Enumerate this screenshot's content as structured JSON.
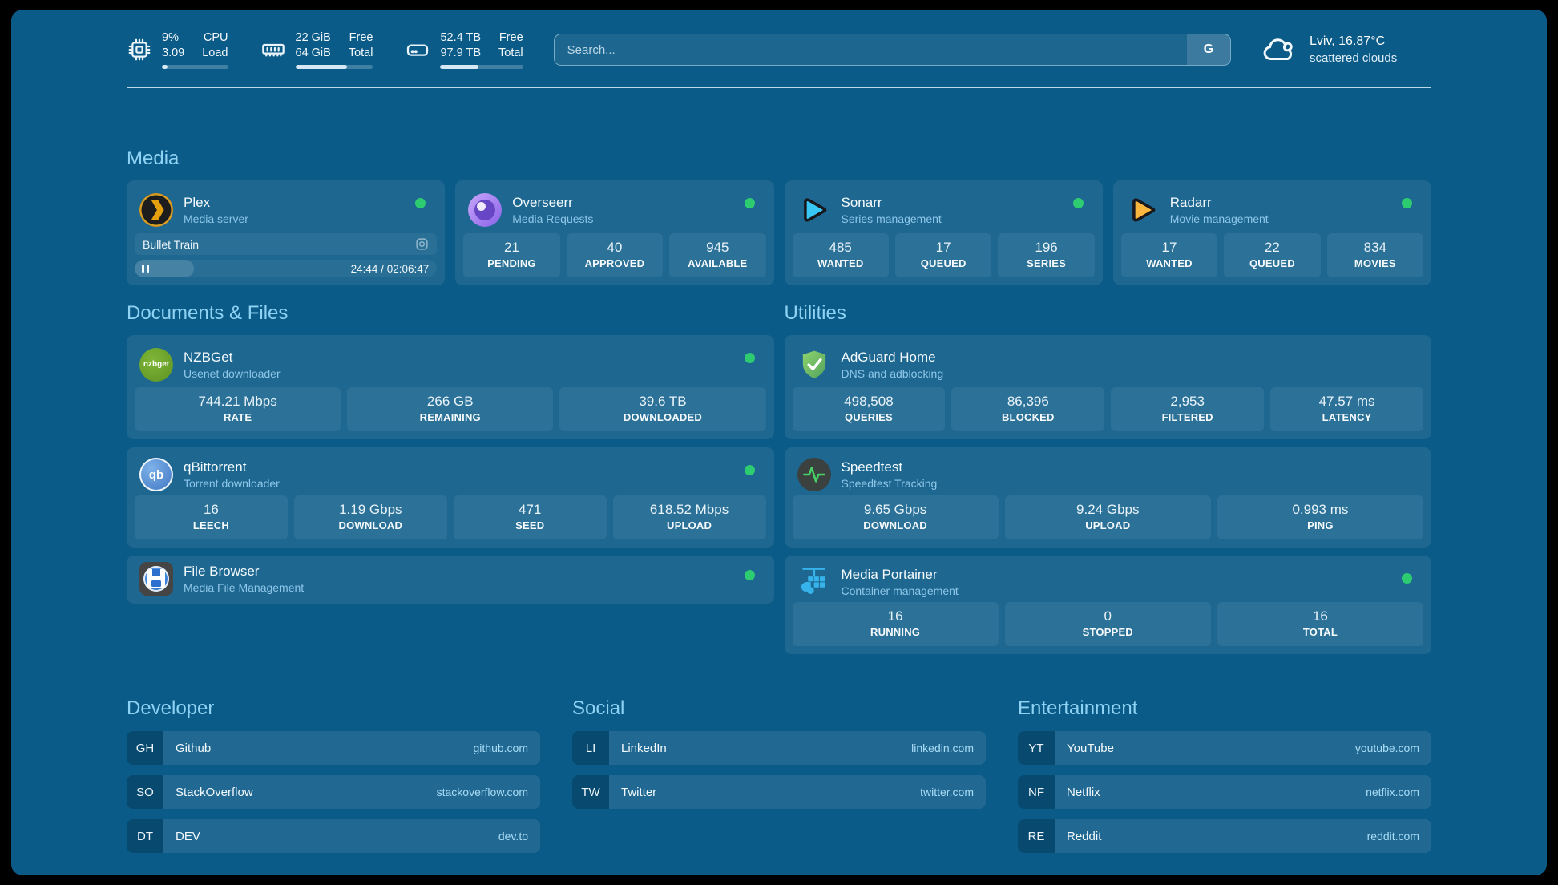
{
  "colors": {
    "background": "#0b5b88",
    "section_title": "#8ed2f4",
    "status_online": "#2ecc71",
    "url_text": "#a9dcf6"
  },
  "topbar": {
    "resources": [
      {
        "icon": "cpu-icon",
        "value_top": "9%",
        "value_bottom": "3.09",
        "label_top": "CPU",
        "label_bottom": "Load",
        "percent": 9
      },
      {
        "icon": "memory-icon",
        "value_top": "22 GiB",
        "value_bottom": "64 GiB",
        "label_top": "Free",
        "label_bottom": "Total",
        "percent": 66
      },
      {
        "icon": "disk-icon",
        "value_top": "52.4 TB",
        "value_bottom": "97.9 TB",
        "label_top": "Free",
        "label_bottom": "Total",
        "percent": 46
      }
    ],
    "search": {
      "placeholder": "Search...",
      "button": "G"
    },
    "weather": {
      "location": "Lviv, 16.87°C",
      "condition": "scattered clouds"
    }
  },
  "media": {
    "title": "Media",
    "plex": {
      "name": "Plex",
      "subtitle": "Media server",
      "icon": "plex-icon",
      "status": "online",
      "now_playing": "Bullet Train",
      "time_display": "24:44 / 02:06:47",
      "progress_percent": 19.5
    },
    "overseerr": {
      "name": "Overseerr",
      "subtitle": "Media Requests",
      "icon": "overseerr-icon",
      "status": "online",
      "stats": [
        {
          "value": "21",
          "label": "PENDING"
        },
        {
          "value": "40",
          "label": "APPROVED"
        },
        {
          "value": "945",
          "label": "AVAILABLE"
        }
      ]
    },
    "sonarr": {
      "name": "Sonarr",
      "subtitle": "Series management",
      "icon": "sonarr-icon",
      "status": "online",
      "stats": [
        {
          "value": "485",
          "label": "WANTED"
        },
        {
          "value": "17",
          "label": "QUEUED"
        },
        {
          "value": "196",
          "label": "SERIES"
        }
      ]
    },
    "radarr": {
      "name": "Radarr",
      "subtitle": "Movie management",
      "icon": "radarr-icon",
      "status": "online",
      "stats": [
        {
          "value": "17",
          "label": "WANTED"
        },
        {
          "value": "22",
          "label": "QUEUED"
        },
        {
          "value": "834",
          "label": "MOVIES"
        }
      ]
    }
  },
  "documents": {
    "title": "Documents & Files",
    "nzbget": {
      "name": "NZBGet",
      "subtitle": "Usenet downloader",
      "icon": "nzbget-icon",
      "status": "online",
      "stats": [
        {
          "value": "744.21 Mbps",
          "label": "RATE"
        },
        {
          "value": "266 GB",
          "label": "REMAINING"
        },
        {
          "value": "39.6 TB",
          "label": "DOWNLOADED"
        }
      ]
    },
    "qbittorrent": {
      "name": "qBittorrent",
      "subtitle": "Torrent downloader",
      "icon": "qbittorrent-icon",
      "status": "online",
      "icon_text": "qb",
      "stats": [
        {
          "value": "16",
          "label": "LEECH"
        },
        {
          "value": "1.19 Gbps",
          "label": "DOWNLOAD"
        },
        {
          "value": "471",
          "label": "SEED"
        },
        {
          "value": "618.52 Mbps",
          "label": "UPLOAD"
        }
      ]
    },
    "filebrowser": {
      "name": "File Browser",
      "subtitle": "Media File Management",
      "icon": "filebrowser-icon",
      "status": "online"
    }
  },
  "utilities": {
    "title": "Utilities",
    "adguard": {
      "name": "AdGuard Home",
      "subtitle": "DNS and adblocking",
      "icon": "adguard-icon",
      "stats": [
        {
          "value": "498,508",
          "label": "QUERIES"
        },
        {
          "value": "86,396",
          "label": "BLOCKED"
        },
        {
          "value": "2,953",
          "label": "FILTERED"
        },
        {
          "value": "47.57 ms",
          "label": "LATENCY"
        }
      ]
    },
    "speedtest": {
      "name": "Speedtest",
      "subtitle": "Speedtest Tracking",
      "icon": "speedtest-icon",
      "stats": [
        {
          "value": "9.65 Gbps",
          "label": "DOWNLOAD"
        },
        {
          "value": "9.24 Gbps",
          "label": "UPLOAD"
        },
        {
          "value": "0.993 ms",
          "label": "PING"
        }
      ]
    },
    "portainer": {
      "name": "Media Portainer",
      "subtitle": "Container management",
      "icon": "portainer-icon",
      "status": "online",
      "stats": [
        {
          "value": "16",
          "label": "RUNNING"
        },
        {
          "value": "0",
          "label": "STOPPED"
        },
        {
          "value": "16",
          "label": "TOTAL"
        }
      ]
    }
  },
  "bookmarks": {
    "developer": {
      "title": "Developer",
      "items": [
        {
          "abbr": "GH",
          "name": "Github",
          "url": "github.com"
        },
        {
          "abbr": "SO",
          "name": "StackOverflow",
          "url": "stackoverflow.com"
        },
        {
          "abbr": "DT",
          "name": "DEV",
          "url": "dev.to"
        }
      ]
    },
    "social": {
      "title": "Social",
      "items": [
        {
          "abbr": "LI",
          "name": "LinkedIn",
          "url": "linkedin.com"
        },
        {
          "abbr": "TW",
          "name": "Twitter",
          "url": "twitter.com"
        }
      ]
    },
    "entertainment": {
      "title": "Entertainment",
      "items": [
        {
          "abbr": "YT",
          "name": "YouTube",
          "url": "youtube.com"
        },
        {
          "abbr": "NF",
          "name": "Netflix",
          "url": "netflix.com"
        },
        {
          "abbr": "RE",
          "name": "Reddit",
          "url": "reddit.com"
        }
      ]
    }
  }
}
